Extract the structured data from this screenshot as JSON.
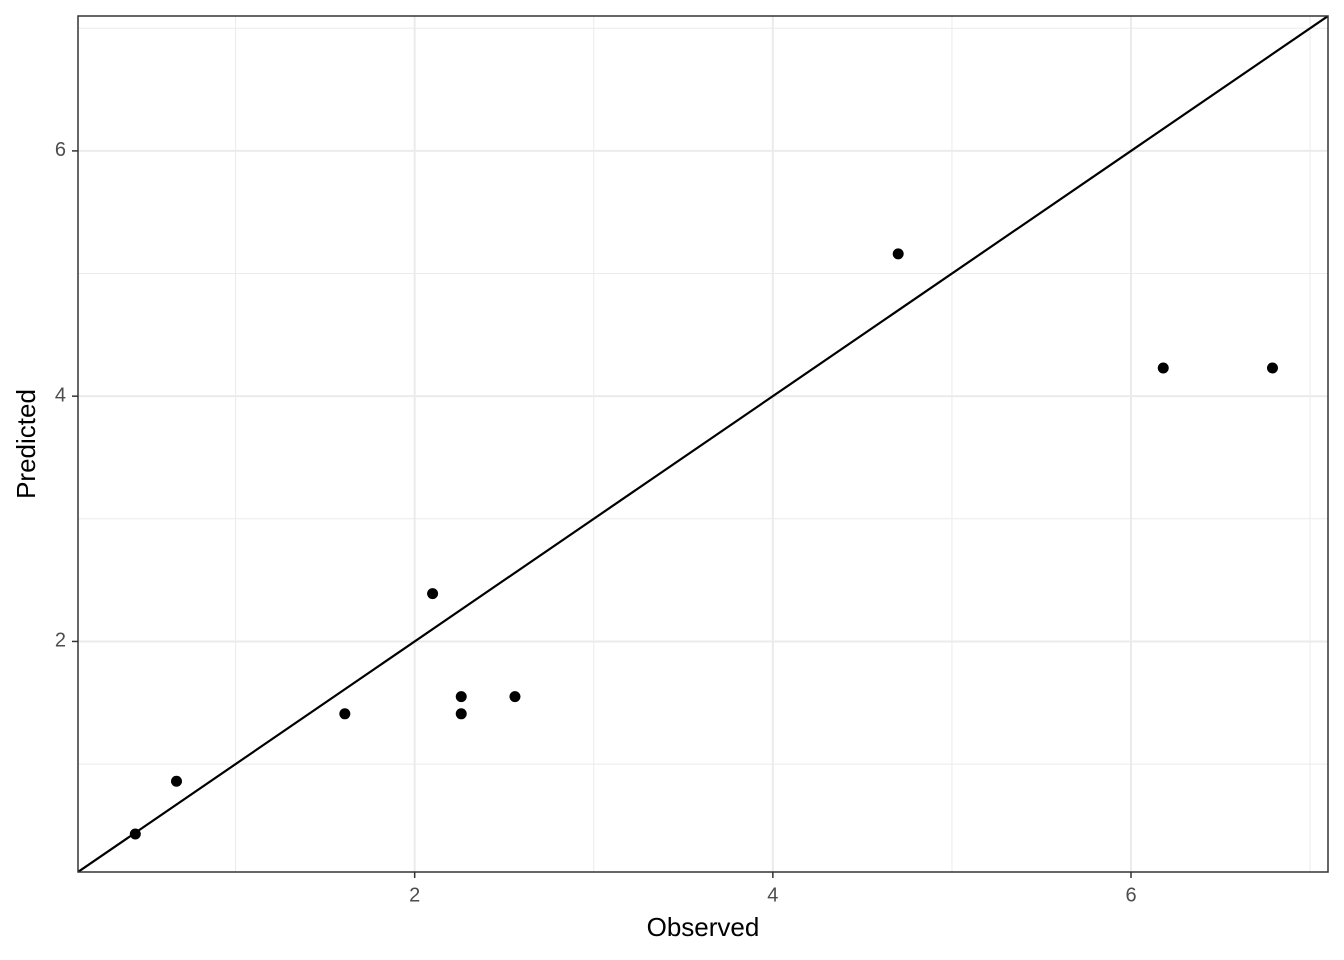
{
  "chart_data": {
    "type": "scatter",
    "x_label": "Observed",
    "y_label": "Predicted",
    "x": [
      0.44,
      0.67,
      1.61,
      2.1,
      2.26,
      2.26,
      2.56,
      4.7,
      6.18,
      6.79
    ],
    "series": [
      {
        "color": "#000000",
        "values": [
          0.43,
          0.86,
          1.41,
          2.39,
          1.55,
          1.41,
          1.55,
          5.16,
          4.23,
          4.23
        ]
      }
    ],
    "xlim": [
      0.12,
      7.1
    ],
    "ylim": [
      0.12,
      7.1
    ],
    "xticks": [
      2,
      4,
      6
    ],
    "yticks": [
      2,
      4,
      6
    ],
    "x_minor_ticks": [
      1,
      3,
      5,
      7
    ],
    "y_minor_ticks": [
      1,
      3,
      5,
      7
    ],
    "reference_line": {
      "intercept": 0,
      "slope": 1
    },
    "grid": true
  }
}
